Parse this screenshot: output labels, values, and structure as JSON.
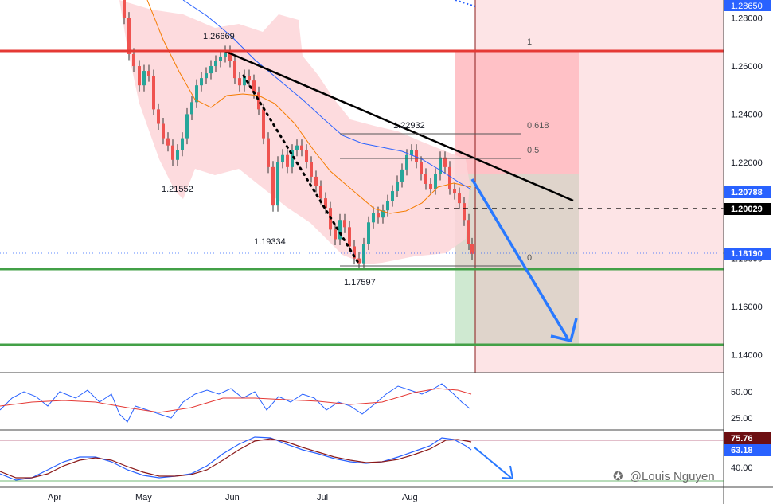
{
  "chart_data": {
    "type": "candlestick",
    "y_axis": {
      "ylim": [
        1.1325,
        1.2875
      ],
      "ticks": [
        "1.28000",
        "1.26000",
        "1.24000",
        "1.22000",
        "1.20000",
        "1.18000",
        "1.16000",
        "1.14000"
      ]
    },
    "x_axis": {
      "ticks": [
        "Apr",
        "May",
        "Jun",
        "Jul",
        "Aug"
      ]
    },
    "price_badges": [
      {
        "value": "1.28650",
        "color": "#2962ff"
      },
      {
        "value": "1.20788",
        "color": "#2962ff"
      },
      {
        "value": "1.20029",
        "color": "#000000"
      },
      {
        "value": "1.18190",
        "color": "#2962ff"
      }
    ],
    "price_annotations": [
      "1.26669",
      "1.21552",
      "1.19334",
      "1.17597",
      "1.22932"
    ],
    "fib_levels": [
      "1",
      "0.618",
      "0.5",
      "0"
    ],
    "horizontal_levels": [
      {
        "price": 1.267,
        "color": "#e53935"
      },
      {
        "price": 1.175,
        "color": "#43a047"
      },
      {
        "price": 1.143,
        "color": "#43a047"
      }
    ],
    "rsi": {
      "ticks": [
        "50.00",
        "25.00"
      ]
    },
    "stochastic": {
      "ticks": [
        "40.00"
      ],
      "badges": [
        {
          "value": "75.76",
          "color": "#6d0f12"
        },
        {
          "value": "63.18",
          "color": "#2962ff"
        }
      ]
    },
    "colors": {
      "up": "#26a69a",
      "down": "#ef5350",
      "band": "#ffcdd2",
      "ma_fast": "#f57c00",
      "ma_slow": "#2962ff",
      "trend": "#000000",
      "arrow": "#2979ff"
    }
  },
  "watermark": "@Louis Nguyen"
}
